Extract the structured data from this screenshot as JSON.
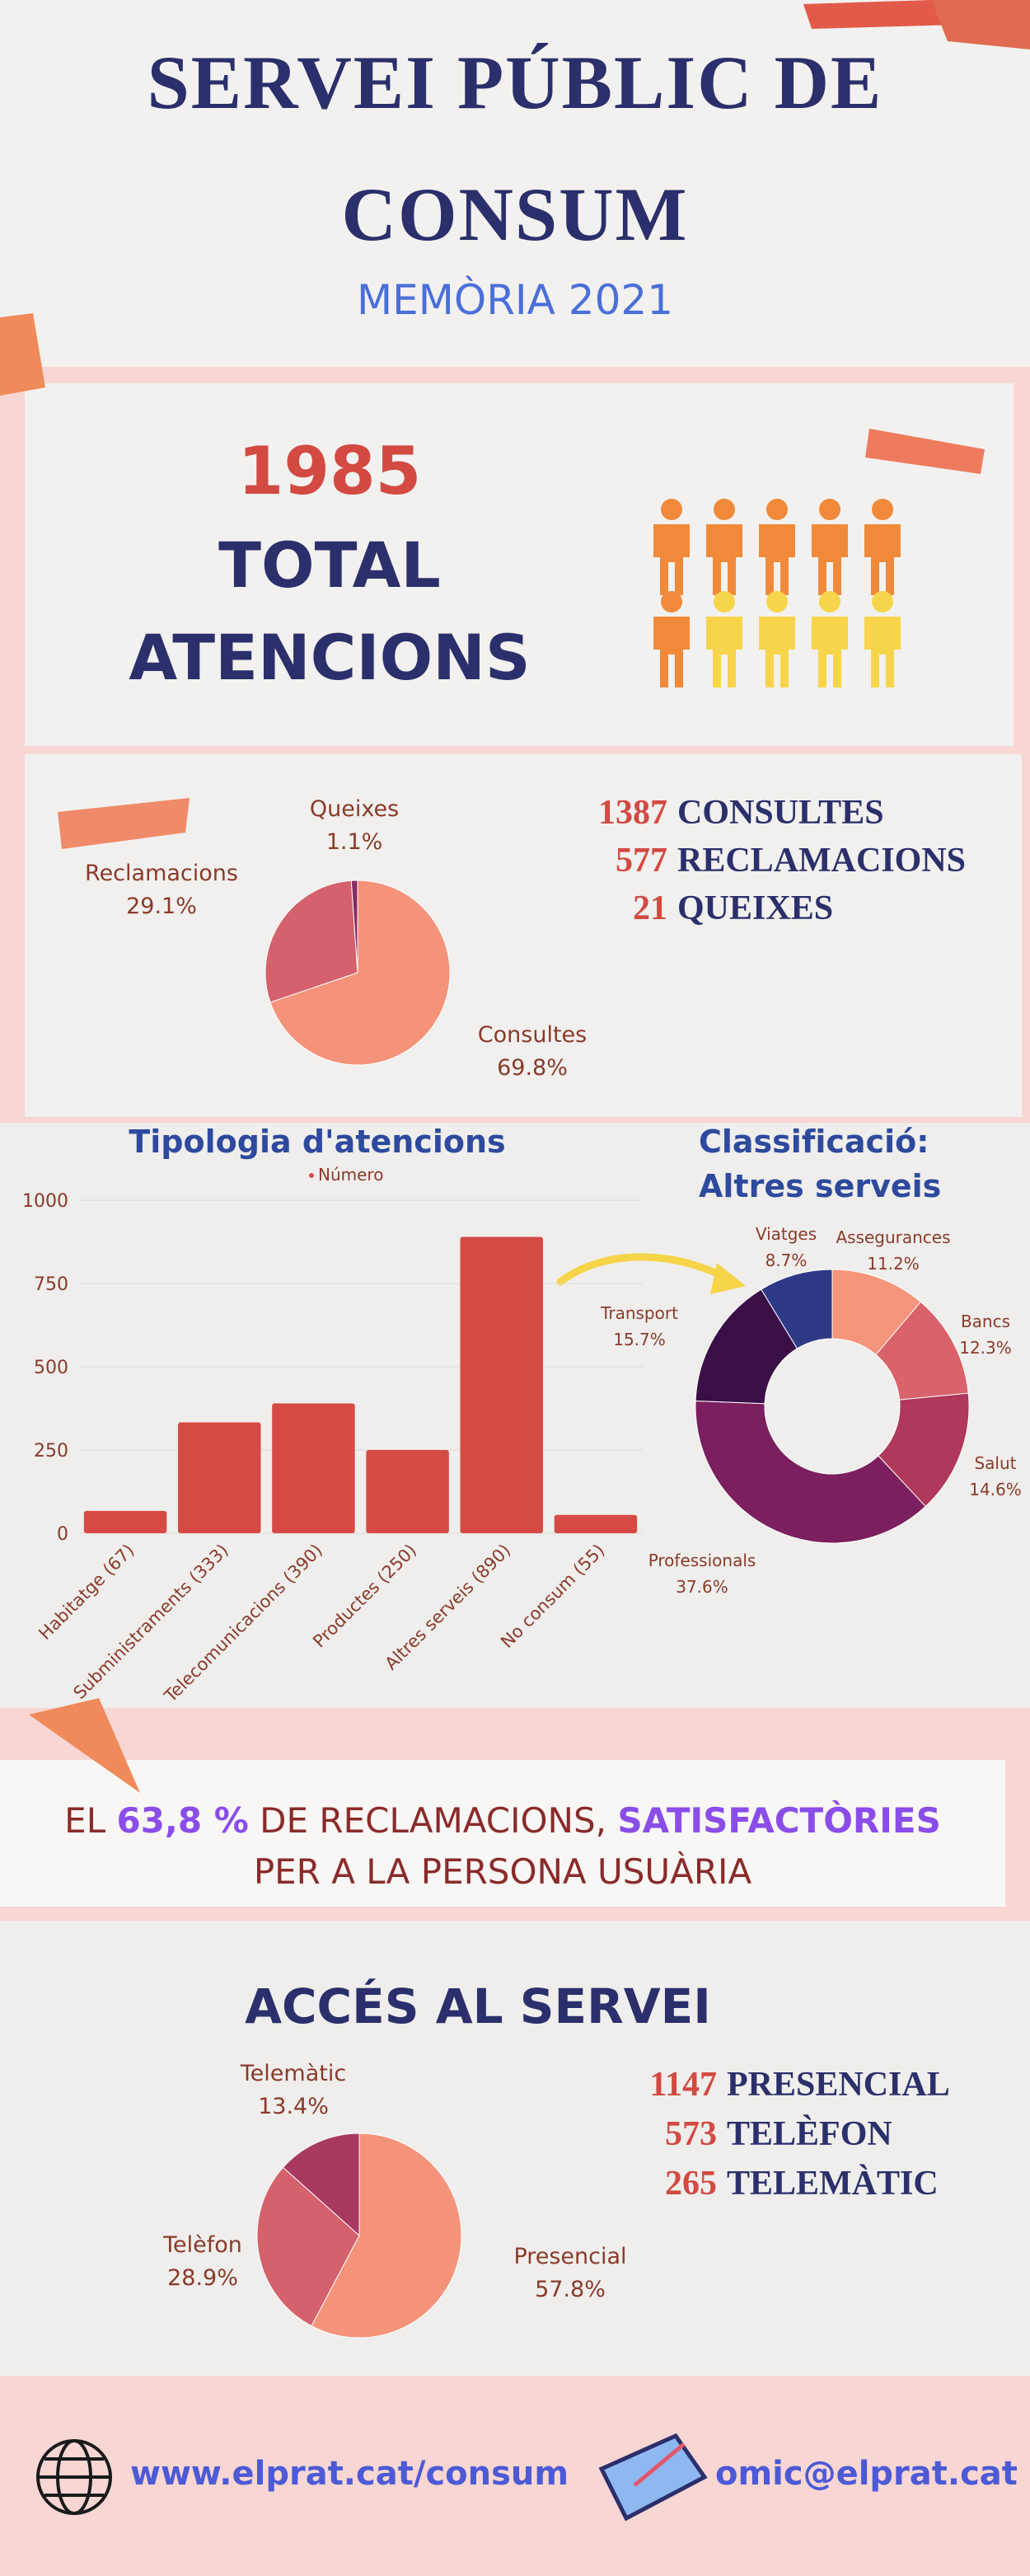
{
  "header": {
    "title": "SERVEI PÚBLIC DE CONSUM",
    "subtitle": "MEMÒRIA 2021"
  },
  "total": {
    "value": 1985,
    "label": "TOTAL ATENCIONS"
  },
  "attention_counts": [
    {
      "value": 1387,
      "label": "CONSULTES"
    },
    {
      "value": 577,
      "label": "RECLAMACIONS"
    },
    {
      "value": 21,
      "label": "QUEIXES"
    }
  ],
  "chart_data": [
    {
      "type": "pie",
      "categories": [
        "Consultes",
        "Reclamacions",
        "Queixes"
      ],
      "values": [
        69.8,
        29.1,
        1.1
      ],
      "value_labels": [
        "69.8%",
        "29.1%",
        "1.1%"
      ],
      "colors": [
        "#f4937a",
        "#d4616c",
        "#8a2a63"
      ]
    },
    {
      "type": "bar",
      "title": "Tipologia d'atencions",
      "categories": [
        "Habitatge (67)",
        "Subministraments (333)",
        "Telecomunicacions (390)",
        "Productes (250)",
        "Altres serveis (890)",
        "No consum (55)"
      ],
      "series": [
        {
          "name": "Número",
          "color": "#d64a45",
          "values": [
            67,
            333,
            390,
            250,
            890,
            55
          ]
        }
      ],
      "ylim": [
        0,
        1000
      ],
      "yticks": [
        0,
        250,
        500,
        750,
        1000
      ],
      "grid": true
    },
    {
      "type": "donut",
      "title": "Classificació: Altres serveis",
      "categories": [
        "Assegurances",
        "Bancs",
        "Salut",
        "Professionals",
        "Transport",
        "Viatges"
      ],
      "values": [
        11.2,
        12.3,
        14.6,
        37.6,
        15.7,
        8.7
      ],
      "value_labels": [
        "11.2%",
        "12.3%",
        "14.6%",
        "37.6%",
        "15.7%",
        "8.7%"
      ],
      "colors": [
        "#f4947a",
        "#d9626b",
        "#b0385a",
        "#7b1f5e",
        "#3a0f47",
        "#2e3a86"
      ]
    },
    {
      "type": "pie",
      "categories": [
        "Presencial",
        "Telèfon",
        "Telemàtic"
      ],
      "values": [
        57.8,
        28.9,
        13.4
      ],
      "value_labels": [
        "57.8%",
        "28.9%",
        "13.4%"
      ],
      "colors": [
        "#f4937a",
        "#d4616c",
        "#a83a62"
      ]
    }
  ],
  "satisfaction": {
    "parts": [
      "EL",
      "63,8 %",
      "DE RECLAMACIONS,",
      "SATISFACTÒRIES",
      "PER A LA PERSONA USUÀRIA"
    ]
  },
  "access": {
    "title": "ACCÉS AL SERVEI",
    "counts": [
      {
        "value": 1147,
        "label": "PRESENCIAL"
      },
      {
        "value": 573,
        "label": "TELÈFON"
      },
      {
        "value": 265,
        "label": "TELEMÀTIC"
      }
    ]
  },
  "footer": {
    "website": "www.elprat.cat/consum",
    "email": "omic@elprat.cat"
  }
}
